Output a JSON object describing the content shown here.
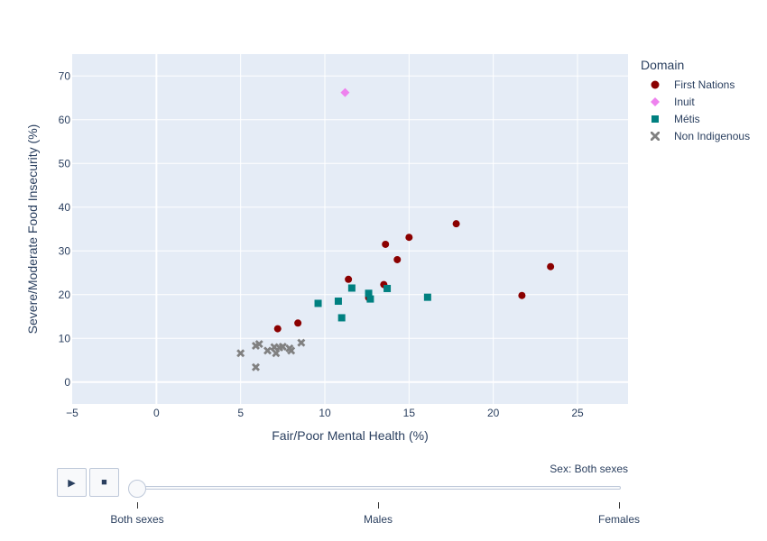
{
  "chart_data": {
    "type": "scatter",
    "title": "",
    "xlabel": "Fair/Poor Mental Health (%)",
    "ylabel": "Severe/Moderate Food Insecurity (%)",
    "xlim": [
      -5,
      28
    ],
    "ylim": [
      -5,
      75
    ],
    "xticks": [
      -5,
      0,
      5,
      10,
      15,
      20,
      25
    ],
    "yticks": [
      0,
      10,
      20,
      30,
      40,
      50,
      60,
      70
    ],
    "xtick_labels": [
      "−5",
      "0",
      "5",
      "10",
      "15",
      "20",
      "25"
    ],
    "grid": true,
    "legend_title": "Domain",
    "legend_position": "right",
    "series": [
      {
        "name": "First Nations",
        "color": "#8b0000",
        "symbol": "circle",
        "points": [
          [
            7.2,
            12.2
          ],
          [
            8.4,
            13.5
          ],
          [
            11.4,
            23.5
          ],
          [
            12.6,
            19.3
          ],
          [
            13.5,
            22.3
          ],
          [
            13.6,
            31.5
          ],
          [
            14.3,
            28.0
          ],
          [
            15.0,
            33.1
          ],
          [
            17.8,
            36.2
          ],
          [
            21.7,
            19.8
          ],
          [
            23.4,
            26.4
          ]
        ]
      },
      {
        "name": "Inuit",
        "color": "#ee82ee",
        "symbol": "diamond",
        "points": [
          [
            11.2,
            66.2
          ]
        ]
      },
      {
        "name": "Métis",
        "color": "#008080",
        "symbol": "square",
        "points": [
          [
            9.6,
            18.0
          ],
          [
            10.8,
            18.5
          ],
          [
            11.0,
            14.7
          ],
          [
            11.6,
            21.5
          ],
          [
            12.6,
            20.3
          ],
          [
            12.7,
            19.0
          ],
          [
            13.7,
            21.4
          ],
          [
            16.1,
            19.4
          ]
        ]
      },
      {
        "name": "Non Indigenous",
        "color": "#808080",
        "symbol": "x",
        "points": [
          [
            5.0,
            6.6
          ],
          [
            5.9,
            8.3
          ],
          [
            6.1,
            8.7
          ],
          [
            5.9,
            3.4
          ],
          [
            6.6,
            7.2
          ],
          [
            7.0,
            8.0
          ],
          [
            7.1,
            6.6
          ],
          [
            7.3,
            7.9
          ],
          [
            7.5,
            8.1
          ],
          [
            7.9,
            7.7
          ],
          [
            8.0,
            7.2
          ],
          [
            8.6,
            9.0
          ]
        ]
      }
    ]
  },
  "controls": {
    "play_icon": "▶",
    "stop_icon": "■"
  },
  "slider": {
    "prefix": "Sex: ",
    "current": "Both sexes",
    "current_display": "Sex: Both sexes",
    "current_index": 0,
    "steps": [
      "Both sexes",
      "Males",
      "Females"
    ]
  }
}
